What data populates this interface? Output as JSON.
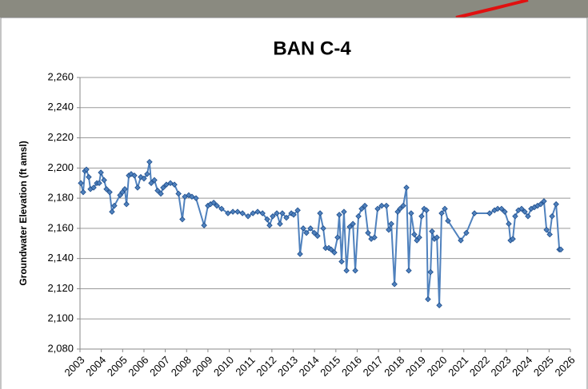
{
  "chart_data": {
    "type": "line",
    "title": "BAN C-4",
    "ylabel": "Groundwater Elevation (ft amsl)",
    "xlim": [
      2003,
      2026
    ],
    "xticks": [
      2003,
      2004,
      2005,
      2006,
      2007,
      2008,
      2009,
      2010,
      2011,
      2012,
      2013,
      2014,
      2015,
      2016,
      2017,
      2018,
      2019,
      2020,
      2021,
      2022,
      2023,
      2024,
      2025,
      2026
    ],
    "ylim": [
      2080,
      2260
    ],
    "yticks": [
      {
        "value": 2080,
        "label": "2,080"
      },
      {
        "value": 2100,
        "label": "2,100"
      },
      {
        "value": 2120,
        "label": "2,120"
      },
      {
        "value": 2140,
        "label": "2,140"
      },
      {
        "value": 2160,
        "label": "2,160"
      },
      {
        "value": 2180,
        "label": "2,180"
      },
      {
        "value": 2200,
        "label": "2,200"
      },
      {
        "value": 2220,
        "label": "2,220"
      },
      {
        "value": 2240,
        "label": "2,240"
      },
      {
        "value": 2260,
        "label": "2,260"
      }
    ],
    "grid": true,
    "series": [
      {
        "color": "#4f81bd",
        "marker_color": "#1f4e8c",
        "x": [
          2003.04,
          2003.15,
          2003.23,
          2003.3,
          2003.41,
          2003.49,
          2003.64,
          2003.79,
          2003.9,
          2003.98,
          2004.13,
          2004.24,
          2004.39,
          2004.5,
          2004.61,
          2004.88,
          2004.99,
          2005.1,
          2005.18,
          2005.29,
          2005.4,
          2005.55,
          2005.7,
          2005.85,
          2006.0,
          2006.15,
          2006.26,
          2006.34,
          2006.49,
          2006.64,
          2006.79,
          2006.9,
          2007.05,
          2007.24,
          2007.43,
          2007.62,
          2007.8,
          2007.92,
          2008.1,
          2008.25,
          2008.44,
          2008.82,
          2009.0,
          2009.12,
          2009.27,
          2009.42,
          2009.64,
          2009.94,
          2010.17,
          2010.39,
          2010.62,
          2010.88,
          2011.11,
          2011.33,
          2011.56,
          2011.78,
          2011.89,
          2012.04,
          2012.23,
          2012.38,
          2012.49,
          2012.68,
          2012.91,
          2013.02,
          2013.21,
          2013.32,
          2013.47,
          2013.62,
          2013.81,
          2013.99,
          2014.14,
          2014.26,
          2014.41,
          2014.52,
          2014.67,
          2014.78,
          2014.93,
          2015.08,
          2015.16,
          2015.27,
          2015.38,
          2015.5,
          2015.65,
          2015.8,
          2015.91,
          2016.06,
          2016.21,
          2016.36,
          2016.51,
          2016.66,
          2016.81,
          2016.96,
          2017.15,
          2017.37,
          2017.48,
          2017.6,
          2017.75,
          2017.9,
          2018.01,
          2018.16,
          2018.31,
          2018.42,
          2018.53,
          2018.68,
          2018.8,
          2018.91,
          2019.02,
          2019.14,
          2019.25,
          2019.32,
          2019.44,
          2019.51,
          2019.62,
          2019.74,
          2019.85,
          2019.96,
          2020.11,
          2020.26,
          2020.86,
          2021.12,
          2021.5,
          2022.21,
          2022.44,
          2022.59,
          2022.77,
          2022.92,
          2023.11,
          2023.19,
          2023.3,
          2023.41,
          2023.56,
          2023.71,
          2023.86,
          2024.01,
          2024.16,
          2024.31,
          2024.46,
          2024.61,
          2024.76,
          2024.88,
          2025.03,
          2025.14,
          2025.33,
          2025.48,
          2025.55
        ],
        "values": [
          2190,
          2184,
          2198,
          2199,
          2194,
          2186,
          2187,
          2190,
          2190,
          2197,
          2192,
          2186,
          2184,
          2171,
          2175,
          2182,
          2184,
          2186,
          2176,
          2195,
          2196,
          2195,
          2187,
          2194,
          2193,
          2196,
          2204,
          2190,
          2192,
          2185,
          2183,
          2187,
          2189,
          2190,
          2189,
          2183,
          2166,
          2181,
          2182,
          2181,
          2180,
          2162,
          2175,
          2176,
          2177,
          2175,
          2173,
          2170,
          2171,
          2171,
          2170,
          2168,
          2170,
          2171,
          2170,
          2166,
          2162,
          2168,
          2170,
          2163,
          2170,
          2167,
          2170,
          2169,
          2172,
          2143,
          2160,
          2157,
          2160,
          2157,
          2155,
          2170,
          2160,
          2147,
          2147,
          2146,
          2144,
          2154,
          2169,
          2138,
          2171,
          2132,
          2161,
          2163,
          2132,
          2168,
          2173,
          2175,
          2157,
          2153,
          2154,
          2173,
          2175,
          2175,
          2159,
          2163,
          2123,
          2171,
          2173,
          2175,
          2187,
          2132,
          2170,
          2156,
          2152,
          2154,
          2168,
          2173,
          2172,
          2113,
          2131,
          2158,
          2153,
          2154,
          2109,
          2170,
          2173,
          2165,
          2152,
          2157,
          2170,
          2170,
          2172,
          2173,
          2173,
          2171,
          2163,
          2152,
          2153,
          2168,
          2172,
          2173,
          2171,
          2168,
          2173,
          2174,
          2175,
          2176,
          2178,
          2159,
          2156,
          2168,
          2176,
          2146,
          2146
        ]
      }
    ]
  }
}
